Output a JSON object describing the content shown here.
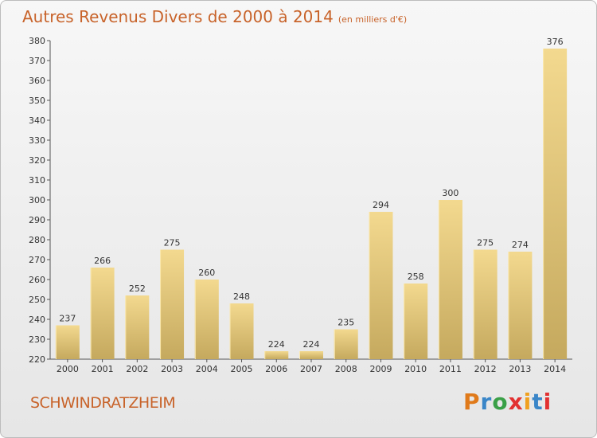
{
  "title": "Autres Revenus Divers de 2000 à 2014",
  "unit_note": "(en milliers d'€)",
  "city": "SCHWINDRATZHEIM",
  "brand": "Proxiti",
  "colors": {
    "title": "#c8632a",
    "bar_top": "#f3d98f",
    "bar_bottom": "#c5a95e",
    "logo": [
      "#e07a1a",
      "#3a86c8",
      "#3aa047",
      "#e23030",
      "#f0a020",
      "#3a86c8",
      "#e23030"
    ]
  },
  "chart_data": {
    "type": "bar",
    "categories": [
      "2000",
      "2001",
      "2002",
      "2003",
      "2004",
      "2005",
      "2006",
      "2007",
      "2008",
      "2009",
      "2010",
      "2011",
      "2012",
      "2013",
      "2014"
    ],
    "values": [
      237,
      266,
      252,
      275,
      260,
      248,
      224,
      224,
      235,
      294,
      258,
      300,
      275,
      274,
      376
    ],
    "ylim": [
      220,
      380
    ],
    "ytick_step": 10,
    "grid": false,
    "data_labels": true
  }
}
